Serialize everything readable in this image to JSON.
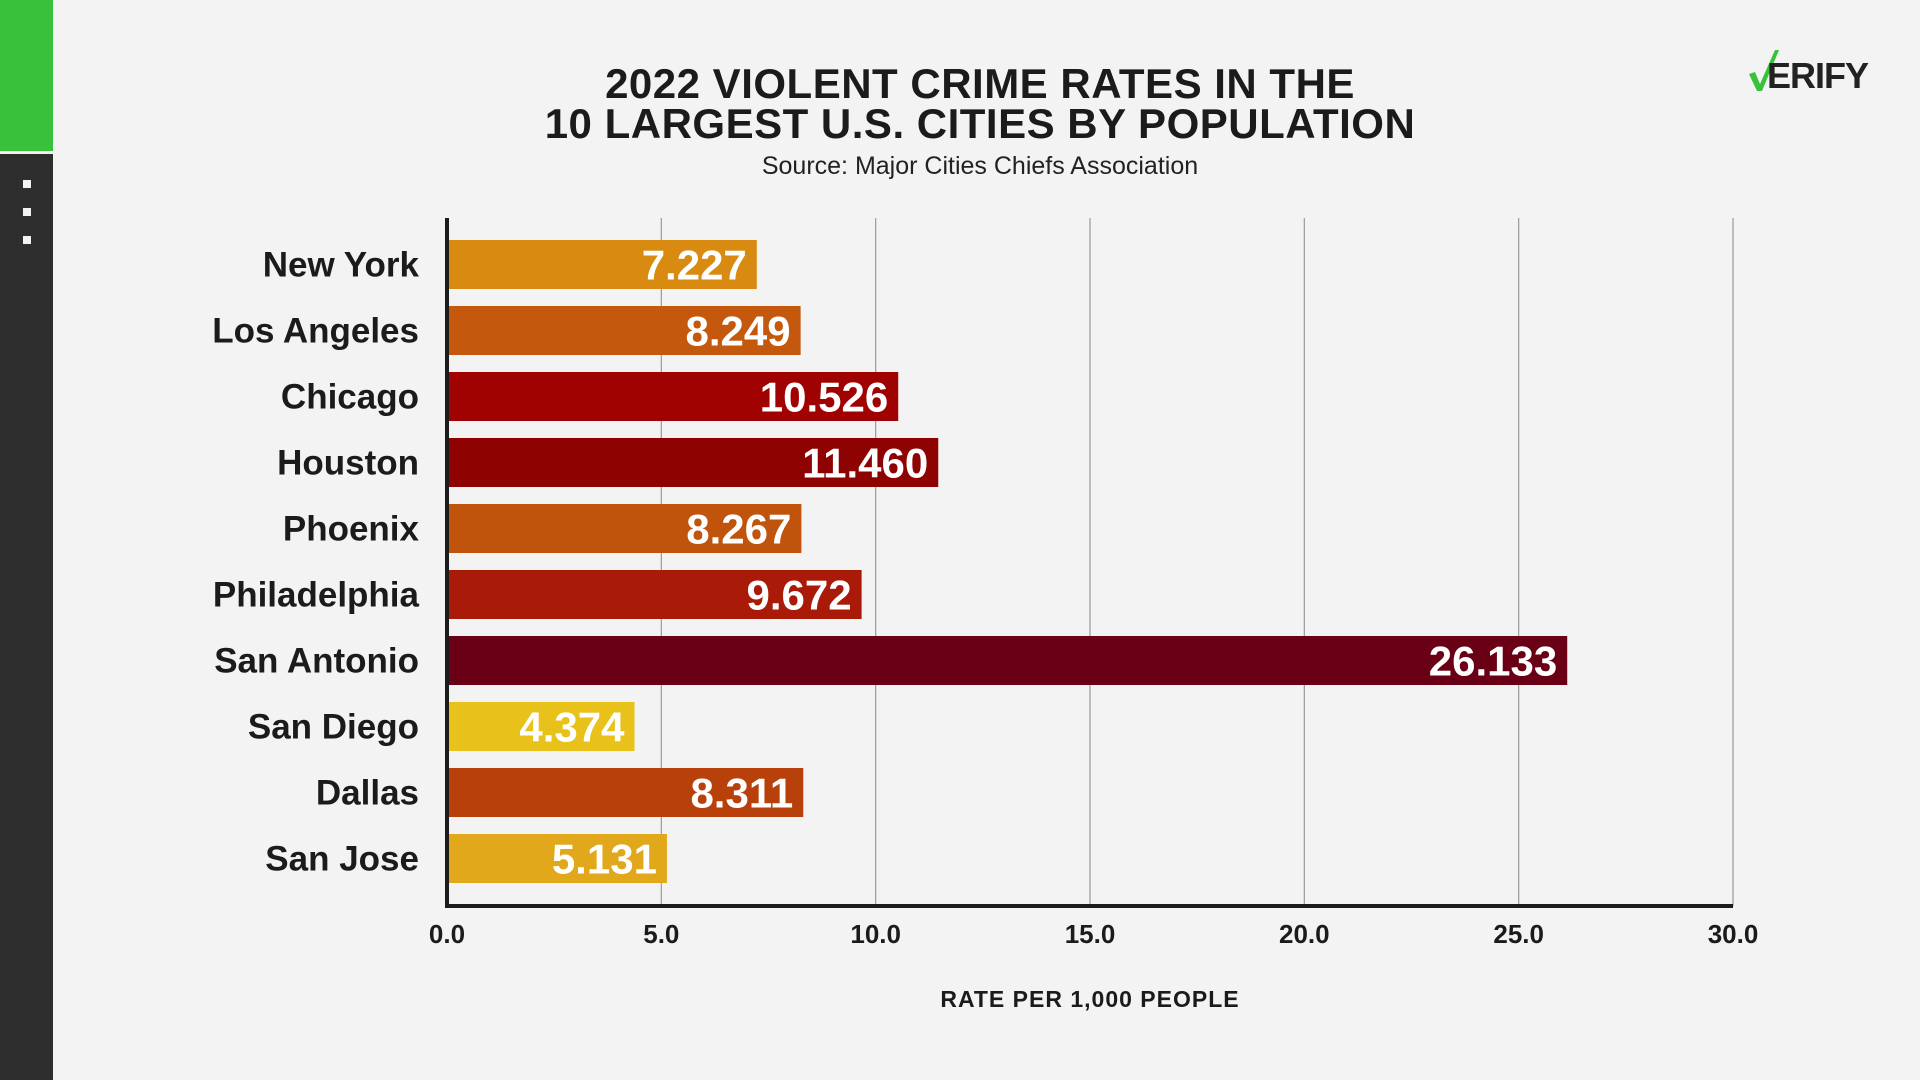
{
  "sidebar": {
    "accent_color": "#38c13a",
    "dark_color": "#2e2e2e",
    "icon": "more-vertical-icon"
  },
  "logo": {
    "text": "VERIFY",
    "check_color": "#38c13a"
  },
  "chart_data": {
    "type": "bar",
    "orientation": "horizontal",
    "title_line1": "2022 VIOLENT CRIME RATES IN THE",
    "title_line2": "10 LARGEST U.S. CITIES BY POPULATION",
    "subtitle": "Source: Major Cities Chiefs Association",
    "xlabel": "RATE PER 1,000 PEOPLE",
    "xlim": [
      0,
      30
    ],
    "xticks": [
      "0.0",
      "5.0",
      "10.0",
      "15.0",
      "20.0",
      "25.0",
      "30.0"
    ],
    "grid": true,
    "categories": [
      "New York",
      "Los Angeles",
      "Chicago",
      "Houston",
      "Phoenix",
      "Philadelphia",
      "San Antonio",
      "San Diego",
      "Dallas",
      "San Jose"
    ],
    "values": [
      7.227,
      8.249,
      10.526,
      11.46,
      8.267,
      9.672,
      26.133,
      4.374,
      8.311,
      5.131
    ],
    "labels": [
      "7.227",
      "8.249",
      "10.526",
      "11.460",
      "8.267",
      "9.672",
      "26.133",
      "4.374",
      "8.311",
      "5.131"
    ],
    "colors": [
      "#d98a10",
      "#c4580c",
      "#a00202",
      "#8e0202",
      "#c0540c",
      "#aa1a08",
      "#6a0016",
      "#e8c21a",
      "#b8400a",
      "#e0a81a"
    ]
  }
}
